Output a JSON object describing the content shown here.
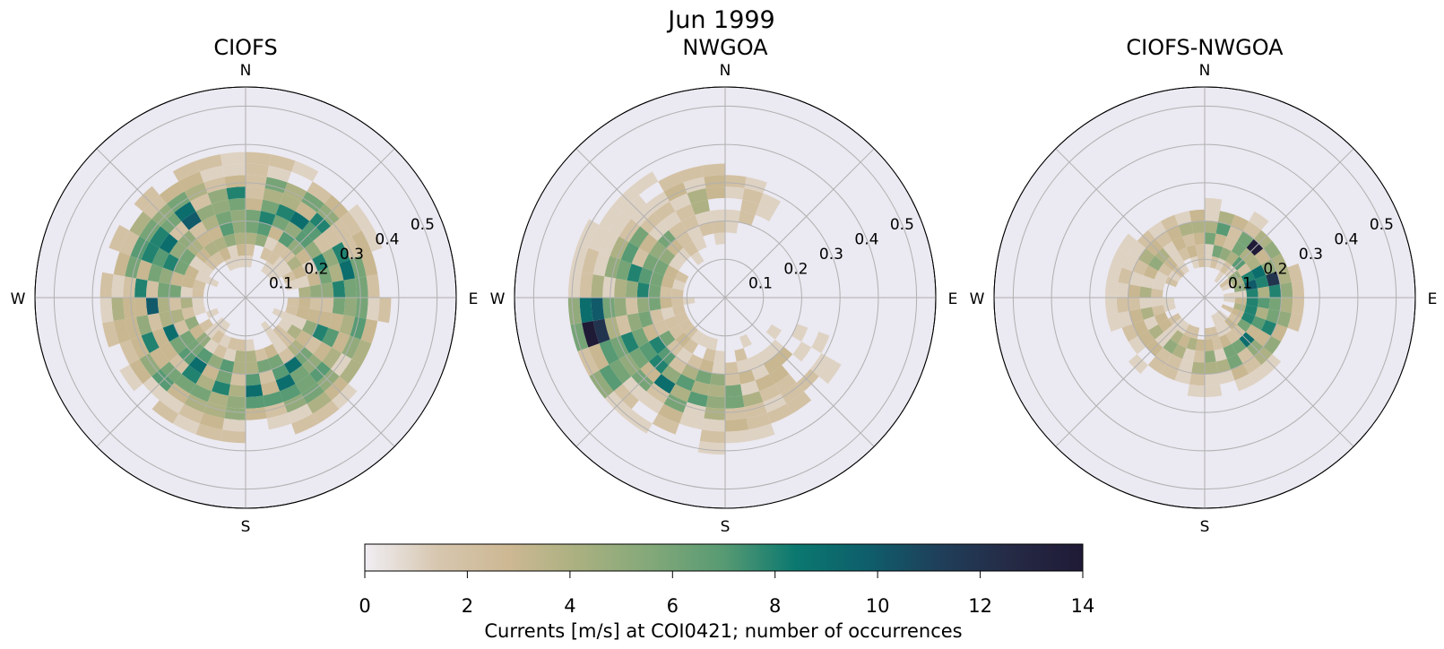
{
  "figure": {
    "suptitle": "Jun 1999"
  },
  "chart_data": [
    {
      "type": "polar-histogram",
      "title": "CIOFS",
      "direction_labels": [
        "N",
        "E",
        "S",
        "W"
      ],
      "radial_ticks": [
        "0.1",
        "0.2",
        "0.3",
        "0.4",
        "0.5"
      ],
      "rlim": [
        0,
        0.55
      ],
      "grid": true,
      "angular_bins": 36,
      "radial_bins": [
        0,
        0.05,
        0.1,
        0.15,
        0.2,
        0.25,
        0.3,
        0.35,
        0.4
      ],
      "max_count_estimate": 8,
      "note_on_distribution": "broad ring of occurrences between 0.1 and 0.38 m/s in all directions"
    },
    {
      "type": "polar-histogram",
      "title": "NWGOA",
      "direction_labels": [
        "N",
        "E",
        "S",
        "W"
      ],
      "radial_ticks": [
        "0.1",
        "0.2",
        "0.3",
        "0.4",
        "0.5"
      ],
      "rlim": [
        0,
        0.55
      ],
      "grid": true,
      "angular_bins": 36,
      "max_count_estimate": 14,
      "peak_direction": "WSW",
      "peak_speed": 0.4
    },
    {
      "type": "polar-histogram",
      "title": "CIOFS-NWGOA",
      "direction_labels": [
        "N",
        "E",
        "S",
        "W"
      ],
      "radial_ticks": [
        "0.1",
        "0.2",
        "0.3",
        "0.4",
        "0.5"
      ],
      "rlim": [
        0,
        0.55
      ],
      "grid": true,
      "angular_bins": 36,
      "max_count_estimate": 14,
      "peak_direction": "NE",
      "peak_speed": 0.2
    }
  ],
  "colorbar": {
    "ticks": [
      0,
      2,
      4,
      6,
      8,
      10,
      12,
      14
    ],
    "tick_labels": [
      "0",
      "2",
      "4",
      "6",
      "8",
      "10",
      "12",
      "14"
    ],
    "vmin": 0,
    "vmax": 14,
    "label": "Currents [m/s] at COI0421; number of occurrences",
    "colormap_stops": [
      "#f0eef3",
      "#d7c7b0",
      "#cdb893",
      "#a9b080",
      "#82a879",
      "#579a73",
      "#0b786f",
      "#0e5e6b",
      "#1f3f5a",
      "#252a45",
      "#1f1a36"
    ]
  }
}
